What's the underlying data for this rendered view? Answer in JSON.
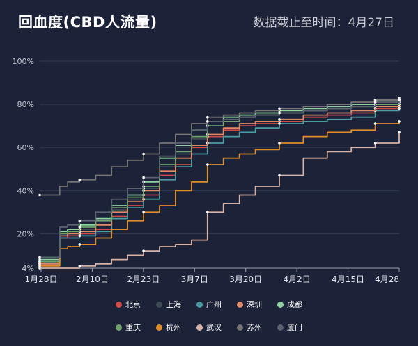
{
  "header": {
    "title": "回血度(CBD人流量)",
    "subtitle": "数据截止至时间：4月27日"
  },
  "chart_data": {
    "type": "line",
    "x_labels": [
      "1月28日",
      "2月10日",
      "2月23日",
      "3月7日",
      "3月20日",
      "4月2日",
      "4月15日",
      "4月28"
    ],
    "y_ticks": [
      "4%",
      "20%",
      "40%",
      "60%",
      "80%",
      "100%"
    ],
    "ylim": [
      4,
      100
    ],
    "grid": true,
    "legend_position": "bottom",
    "series": [
      {
        "name": "北京",
        "color": "#d04a4a",
        "x": [
          0,
          4,
          5,
          7,
          10,
          14,
          18,
          22,
          26,
          30,
          34,
          38,
          42,
          46,
          50,
          54,
          60,
          66,
          72,
          78,
          84,
          90
        ],
        "values": [
          6,
          6,
          18,
          19,
          20,
          22,
          28,
          33,
          38,
          47,
          52,
          60,
          65,
          68,
          70,
          71,
          72,
          74,
          75,
          76,
          78,
          79
        ]
      },
      {
        "name": "上海",
        "color": "#3d4a55",
        "x": [
          0,
          4,
          5,
          7,
          10,
          14,
          18,
          22,
          26,
          30,
          34,
          38,
          42,
          46,
          50,
          54,
          60,
          66,
          72,
          78,
          84,
          90
        ],
        "values": [
          7,
          7,
          20,
          21,
          22,
          24,
          31,
          36,
          41,
          51,
          57,
          64,
          70,
          72,
          74,
          75,
          76,
          77,
          78,
          79,
          80,
          81
        ]
      },
      {
        "name": "广州",
        "color": "#4d9ca3",
        "x": [
          0,
          4,
          5,
          7,
          10,
          14,
          18,
          22,
          26,
          30,
          34,
          38,
          42,
          46,
          50,
          54,
          60,
          66,
          72,
          78,
          84,
          90
        ],
        "values": [
          9,
          9,
          18,
          18,
          19,
          21,
          27,
          32,
          36,
          45,
          51,
          57,
          62,
          65,
          67,
          69,
          71,
          72,
          73,
          74,
          77,
          78
        ]
      },
      {
        "name": "深圳",
        "color": "#de8a68",
        "x": [
          0,
          4,
          5,
          7,
          10,
          14,
          18,
          22,
          26,
          30,
          34,
          38,
          42,
          46,
          50,
          54,
          60,
          66,
          72,
          78,
          84,
          90
        ],
        "values": [
          6,
          6,
          19,
          20,
          21,
          24,
          30,
          35,
          40,
          49,
          55,
          61,
          66,
          69,
          71,
          72,
          73,
          75,
          76,
          77,
          79,
          80
        ]
      },
      {
        "name": "成都",
        "color": "#8fd4a2",
        "x": [
          0,
          4,
          5,
          7,
          10,
          14,
          18,
          22,
          26,
          30,
          34,
          38,
          42,
          46,
          50,
          54,
          60,
          66,
          72,
          78,
          84,
          90
        ],
        "values": [
          8,
          8,
          21,
          22,
          24,
          27,
          33,
          38,
          44,
          55,
          61,
          68,
          72,
          74,
          75,
          76,
          77,
          78,
          79,
          80,
          82,
          83
        ]
      },
      {
        "name": "重庆",
        "color": "#6fa26d",
        "x": [
          0,
          4,
          5,
          7,
          10,
          14,
          18,
          22,
          26,
          30,
          34,
          38,
          42,
          46,
          50,
          54,
          60,
          66,
          72,
          78,
          84,
          90
        ],
        "values": [
          7,
          7,
          20,
          21,
          23,
          26,
          32,
          37,
          42,
          52,
          58,
          65,
          70,
          72,
          74,
          75,
          76,
          77,
          78,
          79,
          80,
          82
        ]
      },
      {
        "name": "杭州",
        "color": "#e08c28",
        "x": [
          0,
          4,
          5,
          7,
          10,
          14,
          18,
          22,
          26,
          30,
          34,
          38,
          42,
          46,
          50,
          54,
          60,
          66,
          72,
          78,
          84,
          90
        ],
        "values": [
          5,
          5,
          13,
          14,
          15,
          18,
          22,
          26,
          30,
          33,
          40,
          44,
          52,
          55,
          57,
          59,
          62,
          65,
          67,
          68,
          71,
          72
        ]
      },
      {
        "name": "武汉",
        "color": "#d6b3a6",
        "x": [
          0,
          4,
          5,
          7,
          10,
          14,
          18,
          22,
          26,
          30,
          34,
          38,
          42,
          46,
          50,
          54,
          60,
          66,
          72,
          78,
          84,
          90
        ],
        "values": [
          4,
          4,
          4,
          4,
          5,
          6,
          8,
          10,
          12,
          14,
          15,
          17,
          30,
          34,
          38,
          42,
          47,
          55,
          58,
          60,
          62,
          67
        ]
      },
      {
        "name": "苏州",
        "color": "#757575",
        "x": [
          0,
          4,
          5,
          7,
          10,
          14,
          18,
          22,
          26,
          30,
          34,
          38,
          42,
          46,
          50,
          54,
          60,
          66,
          72,
          78,
          84,
          90
        ],
        "values": [
          38,
          38,
          42,
          44,
          45,
          47,
          51,
          54,
          57,
          62,
          66,
          71,
          74,
          75,
          76,
          77,
          78,
          79,
          80,
          81,
          82,
          82
        ]
      },
      {
        "name": "厦门",
        "color": "#5b6270",
        "x": [
          0,
          4,
          5,
          7,
          10,
          14,
          18,
          22,
          26,
          30,
          34,
          38,
          42,
          46,
          50,
          54,
          60,
          66,
          72,
          78,
          84,
          90
        ],
        "values": [
          9,
          9,
          23,
          24,
          26,
          30,
          36,
          41,
          46,
          56,
          62,
          68,
          72,
          73,
          74,
          75,
          76,
          77,
          78,
          79,
          81,
          82
        ]
      }
    ]
  }
}
